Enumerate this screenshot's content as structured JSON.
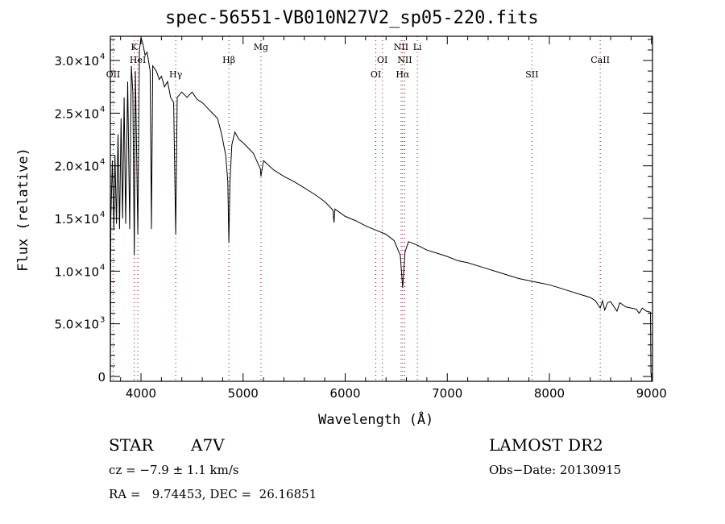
{
  "chart_data": {
    "type": "line",
    "title": "spec-56551-VB010N27V2_sp05-220.fits",
    "xlabel": "Wavelength (Å)",
    "ylabel": "Flux (relative)",
    "xlim": [
      3700,
      9010
    ],
    "ylim": [
      -460,
      32300
    ],
    "xticks": [
      4000,
      5000,
      6000,
      7000,
      8000,
      9000
    ],
    "xtick_labels": [
      "4000",
      "5000",
      "6000",
      "7000",
      "8000",
      "9000"
    ],
    "yticks": [
      0,
      5000,
      10000,
      15000,
      20000,
      25000,
      30000
    ],
    "ytick_labels": [
      {
        "m": "0",
        "e": ""
      },
      {
        "m": "5.0×10",
        "e": "3"
      },
      {
        "m": "1.0×10",
        "e": "4"
      },
      {
        "m": "1.5×10",
        "e": "4"
      },
      {
        "m": "2.0×10",
        "e": "4"
      },
      {
        "m": "2.5×10",
        "e": "4"
      },
      {
        "m": "3.0×10",
        "e": "4"
      }
    ],
    "lines": [
      {
        "label": "OII",
        "wave": 3727,
        "row": 3
      },
      {
        "label": "K",
        "wave": 3934,
        "row": 1
      },
      {
        "label": "HeI",
        "wave": 3969,
        "row": 2
      },
      {
        "label": "Hγ",
        "wave": 4340,
        "row": 3
      },
      {
        "label": "Hβ",
        "wave": 4861,
        "row": 2
      },
      {
        "label": "Mg",
        "wave": 5175,
        "row": 1
      },
      {
        "label": "OI",
        "wave": 6300,
        "row": 3
      },
      {
        "label": "OI",
        "wave": 6364,
        "row": 2
      },
      {
        "label": "Hα",
        "wave": 6563,
        "row": 3
      },
      {
        "label": "NII",
        "wave": 6548,
        "row": 1
      },
      {
        "label": "NII",
        "wave": 6583,
        "row": 2
      },
      {
        "label": "Li",
        "wave": 6707,
        "row": 1
      },
      {
        "label": "SII",
        "wave": 7829,
        "row": 3
      },
      {
        "label": "CaII",
        "wave": 8498,
        "row": 2
      }
    ],
    "series": [
      {
        "name": "flux",
        "points": [
          [
            3700,
            0
          ],
          [
            3705,
            15000
          ],
          [
            3720,
            20500
          ],
          [
            3735,
            14000
          ],
          [
            3745,
            21000
          ],
          [
            3760,
            14500
          ],
          [
            3775,
            23000
          ],
          [
            3790,
            14000
          ],
          [
            3805,
            24500
          ],
          [
            3820,
            15000
          ],
          [
            3835,
            26500
          ],
          [
            3850,
            14500
          ],
          [
            3870,
            28000
          ],
          [
            3889,
            14000
          ],
          [
            3905,
            29500
          ],
          [
            3920,
            27000
          ],
          [
            3934,
            11500
          ],
          [
            3945,
            29000
          ],
          [
            3969,
            13500
          ],
          [
            3985,
            31000
          ],
          [
            4000,
            32200
          ],
          [
            4020,
            31500
          ],
          [
            4040,
            30500
          ],
          [
            4060,
            30800
          ],
          [
            4090,
            29000
          ],
          [
            4102,
            14000
          ],
          [
            4115,
            29500
          ],
          [
            4150,
            29000
          ],
          [
            4180,
            28200
          ],
          [
            4200,
            28500
          ],
          [
            4230,
            27500
          ],
          [
            4260,
            28000
          ],
          [
            4290,
            26500
          ],
          [
            4320,
            26000
          ],
          [
            4340,
            13500
          ],
          [
            4355,
            26500
          ],
          [
            4400,
            27000
          ],
          [
            4450,
            26500
          ],
          [
            4500,
            27000
          ],
          [
            4550,
            26300
          ],
          [
            4600,
            26000
          ],
          [
            4650,
            25500
          ],
          [
            4700,
            25000
          ],
          [
            4750,
            24500
          ],
          [
            4790,
            23000
          ],
          [
            4830,
            21000
          ],
          [
            4850,
            18500
          ],
          [
            4861,
            12700
          ],
          [
            4872,
            18500
          ],
          [
            4890,
            22000
          ],
          [
            4920,
            23200
          ],
          [
            4960,
            22500
          ],
          [
            5000,
            22200
          ],
          [
            5100,
            21200
          ],
          [
            5170,
            19700
          ],
          [
            5175,
            19000
          ],
          [
            5200,
            20500
          ],
          [
            5300,
            19600
          ],
          [
            5400,
            19000
          ],
          [
            5500,
            18500
          ],
          [
            5600,
            17900
          ],
          [
            5700,
            17300
          ],
          [
            5800,
            16600
          ],
          [
            5880,
            15800
          ],
          [
            5890,
            14600
          ],
          [
            5900,
            15900
          ],
          [
            6000,
            15200
          ],
          [
            6100,
            14800
          ],
          [
            6200,
            14300
          ],
          [
            6300,
            13900
          ],
          [
            6400,
            13500
          ],
          [
            6480,
            12900
          ],
          [
            6540,
            11500
          ],
          [
            6563,
            8400
          ],
          [
            6585,
            11800
          ],
          [
            6620,
            12800
          ],
          [
            6700,
            12500
          ],
          [
            6800,
            12000
          ],
          [
            6900,
            11700
          ],
          [
            7000,
            11400
          ],
          [
            7100,
            11000
          ],
          [
            7200,
            10800
          ],
          [
            7300,
            10500
          ],
          [
            7400,
            10200
          ],
          [
            7500,
            9900
          ],
          [
            7600,
            9600
          ],
          [
            7700,
            9300
          ],
          [
            7800,
            9100
          ],
          [
            7900,
            8900
          ],
          [
            8000,
            8700
          ],
          [
            8100,
            8400
          ],
          [
            8200,
            8100
          ],
          [
            8300,
            7800
          ],
          [
            8400,
            7500
          ],
          [
            8450,
            7200
          ],
          [
            8498,
            6500
          ],
          [
            8520,
            7200
          ],
          [
            8542,
            6300
          ],
          [
            8570,
            7000
          ],
          [
            8600,
            7100
          ],
          [
            8662,
            6200
          ],
          [
            8690,
            7000
          ],
          [
            8750,
            6600
          ],
          [
            8800,
            6500
          ],
          [
            8850,
            6400
          ],
          [
            8880,
            6000
          ],
          [
            8910,
            6500
          ],
          [
            8950,
            6200
          ],
          [
            8990,
            6100
          ],
          [
            8995,
            300
          ],
          [
            9000,
            0
          ]
        ]
      }
    ]
  },
  "info": {
    "object_type": "STAR",
    "subclass": "A7V",
    "survey": "LAMOST DR2",
    "cz": "cz = −7.9 ± 1.1 km/s",
    "obs_date": "Obs−Date: 20130915",
    "coords": "RA =   9.74453, DEC =  26.16851"
  },
  "colors": {
    "line_marker": "#8b0000",
    "axes": "#000000"
  }
}
